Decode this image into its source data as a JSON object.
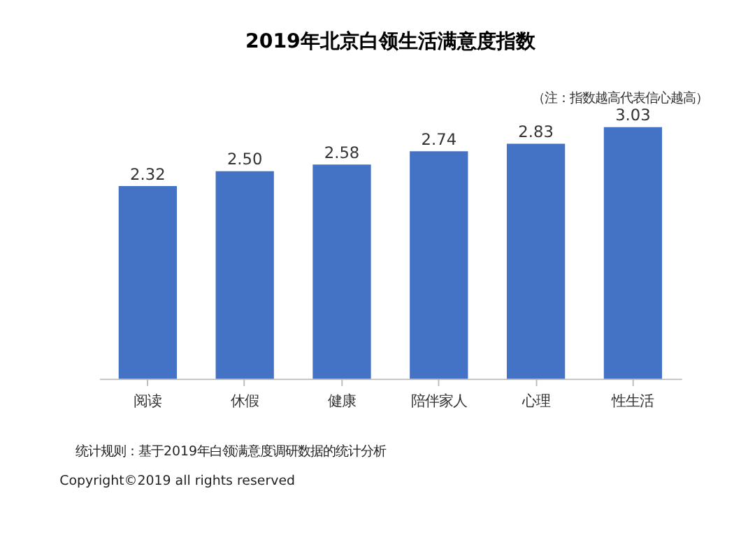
{
  "chart_data": {
    "type": "bar",
    "title": "2019年北京白领生活满意度指数",
    "subtitle": "（注：指数越高代表信心越高）",
    "categories": [
      "阅读",
      "休假",
      "健康",
      "陪伴家人",
      "心理",
      "性生活"
    ],
    "values": [
      2.32,
      2.5,
      2.58,
      2.74,
      2.83,
      3.03
    ],
    "color": "#4472c4",
    "value_labels": [
      "2.32",
      "2.50",
      "2.58",
      "2.74",
      "2.83",
      "3.03"
    ],
    "grid": false,
    "annotations": [
      "统计规则：基于2019年白领满意度调研数据的统计分析",
      "Copyright©2019 all rights reserved"
    ]
  }
}
